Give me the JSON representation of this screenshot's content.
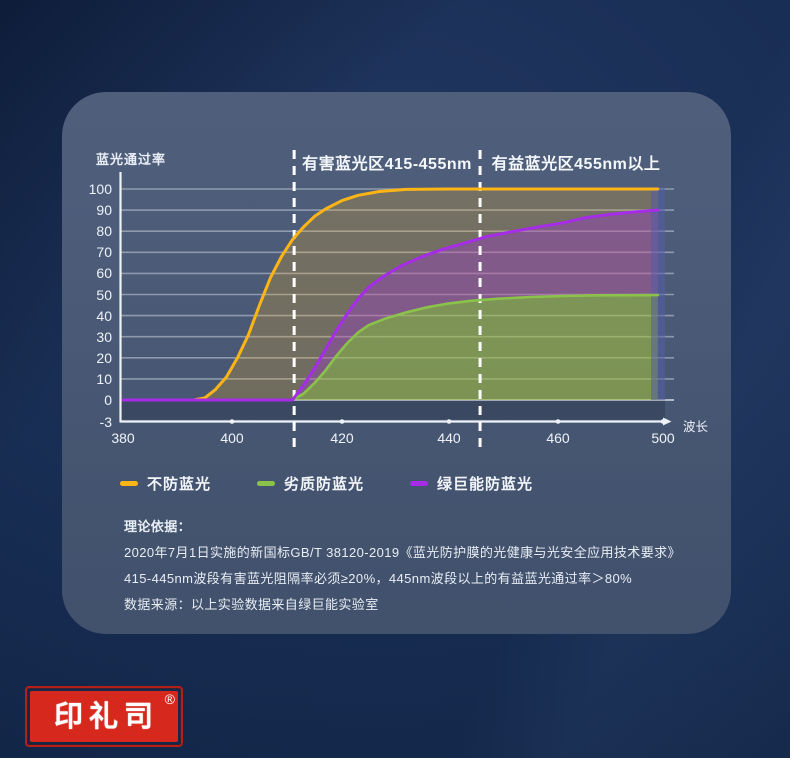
{
  "chart": {
    "y_axis_title": "蓝光通过率",
    "x_axis_unit": "波长",
    "region_titles": [
      "有害蓝光区415-455nm",
      "有益蓝光区455nm以上"
    ],
    "y_tick_labels": [
      "100",
      "90",
      "80",
      "70",
      "60",
      "50",
      "40",
      "30",
      "20",
      "10",
      "0",
      "-3"
    ],
    "x_tick_labels": [
      "380",
      "400",
      "420",
      "440",
      "460",
      "500"
    ]
  },
  "chart_data": {
    "type": "line",
    "title_regions": [
      "有害蓝光区415-455nm",
      "有益蓝光区455nm以上"
    ],
    "xlabel": "波长",
    "ylabel": "蓝光通过率",
    "x_tick_values": [
      380,
      400,
      420,
      440,
      460,
      500
    ],
    "x_axis_note": "tick spacing uniform; last interval 460-500 compressed",
    "y_ticks": [
      100,
      90,
      80,
      70,
      60,
      50,
      40,
      30,
      20,
      10,
      0
    ],
    "ylim": [
      -3,
      100
    ],
    "grid": "horizontal",
    "legend_position": "bottom",
    "dashed_boundary_lines_nm": [
      411.3,
      445.7
    ],
    "series": [
      {
        "name": "不防蓝光",
        "color": "#fdb515",
        "points": [
          [
            380,
            0
          ],
          [
            393,
            0
          ],
          [
            395,
            1
          ],
          [
            397,
            5
          ],
          [
            399,
            11
          ],
          [
            401,
            20
          ],
          [
            403,
            31
          ],
          [
            405,
            45
          ],
          [
            407,
            58
          ],
          [
            409,
            68
          ],
          [
            411,
            76
          ],
          [
            413,
            82
          ],
          [
            415,
            87
          ],
          [
            417,
            90.5
          ],
          [
            420,
            94.5
          ],
          [
            423,
            97
          ],
          [
            427,
            98.8
          ],
          [
            432,
            99.8
          ],
          [
            440,
            100
          ],
          [
            498,
            100
          ]
        ]
      },
      {
        "name": "劣质防蓝光",
        "color": "#8bc34a",
        "points": [
          [
            380,
            0
          ],
          [
            411,
            0
          ],
          [
            413,
            3
          ],
          [
            415,
            8
          ],
          [
            417,
            14
          ],
          [
            419,
            21
          ],
          [
            421,
            27
          ],
          [
            423,
            32
          ],
          [
            425,
            35.5
          ],
          [
            428,
            38.5
          ],
          [
            432,
            41.5
          ],
          [
            436,
            44
          ],
          [
            440,
            45.8
          ],
          [
            444,
            47
          ],
          [
            449,
            48
          ],
          [
            455,
            48.8
          ],
          [
            462,
            49.3
          ],
          [
            475,
            49.6
          ],
          [
            498,
            49.7
          ]
        ]
      },
      {
        "name": "绿巨能防蓝光",
        "color": "#a62ce8",
        "points": [
          [
            380,
            0
          ],
          [
            411,
            0
          ],
          [
            413,
            7
          ],
          [
            415,
            15
          ],
          [
            417,
            24
          ],
          [
            419,
            33
          ],
          [
            421,
            41
          ],
          [
            423,
            48
          ],
          [
            425,
            53.5
          ],
          [
            428,
            59
          ],
          [
            431,
            63.5
          ],
          [
            435,
            68
          ],
          [
            439,
            71.5
          ],
          [
            443,
            74.5
          ],
          [
            447,
            77.5
          ],
          [
            452,
            80
          ],
          [
            457,
            82.3
          ],
          [
            462,
            84
          ],
          [
            470,
            86.3
          ],
          [
            480,
            88
          ],
          [
            490,
            89.2
          ],
          [
            498,
            90
          ]
        ]
      }
    ]
  },
  "legend": {
    "items": [
      {
        "label": "不防蓝光",
        "color": "#fdb515"
      },
      {
        "label": "劣质防蓝光",
        "color": "#8bc34a"
      },
      {
        "label": "绿巨能防蓝光",
        "color": "#a62ce8"
      }
    ]
  },
  "notes": {
    "lines": [
      "理论依据：",
      "2020年7月1日实施的新国标GB/T 38120-2019《蓝光防护膜的光健康与光安全应用技术要求》",
      "415-445nm波段有害蓝光阻隔率必须≥20%，445nm波段以上的有益蓝光通过率＞80%",
      "数据来源：以上实验数据来自绿巨能实验室"
    ]
  },
  "stamp": {
    "text": "印礼司",
    "reg": "®"
  }
}
